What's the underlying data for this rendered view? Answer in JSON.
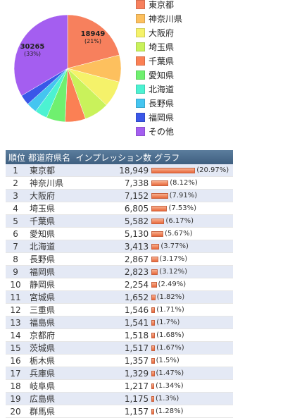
{
  "chart_data": [
    {
      "type": "pie",
      "slices": [
        {
          "label": "東京都",
          "value": 18949,
          "percent": 21,
          "color": "#f7805d"
        },
        {
          "label": "神奈川県",
          "value": 7338,
          "color": "#fdc05e"
        },
        {
          "label": "大阪府",
          "value": 7152,
          "color": "#f5f26a"
        },
        {
          "label": "埼玉県",
          "value": 6805,
          "color": "#c9f25b"
        },
        {
          "label": "千葉県",
          "value": 5582,
          "color": "#fb8054"
        },
        {
          "label": "愛知県",
          "value": 5130,
          "color": "#6ff06f"
        },
        {
          "label": "北海道",
          "value": 3413,
          "color": "#4cf2d2"
        },
        {
          "label": "長野県",
          "value": 2867,
          "color": "#45c5f0"
        },
        {
          "label": "福岡県",
          "value": 2823,
          "color": "#3a57e8"
        },
        {
          "label": "その他",
          "value": 30265,
          "percent": 33,
          "color": "#a45ef0"
        }
      ],
      "slice_labels": [
        {
          "value": "18949",
          "percent": "(21%)"
        },
        {
          "value": "30265",
          "percent": "(33%)"
        }
      ]
    },
    {
      "type": "table",
      "headers": [
        "順位",
        "都道府県名",
        "インプレッション数",
        "グラフ"
      ],
      "rows": [
        {
          "rank": "1",
          "pref": "東京都",
          "imp": "18,949",
          "share": 20.97,
          "pct": "(20.97%)"
        },
        {
          "rank": "2",
          "pref": "神奈川県",
          "imp": "7,338",
          "share": 8.12,
          "pct": "(8.12%)"
        },
        {
          "rank": "3",
          "pref": "大阪府",
          "imp": "7,152",
          "share": 7.91,
          "pct": "(7.91%)"
        },
        {
          "rank": "4",
          "pref": "埼玉県",
          "imp": "6,805",
          "share": 7.53,
          "pct": "(7.53%)"
        },
        {
          "rank": "5",
          "pref": "千葉県",
          "imp": "5,582",
          "share": 6.17,
          "pct": "(6.17%)"
        },
        {
          "rank": "6",
          "pref": "愛知県",
          "imp": "5,130",
          "share": 5.67,
          "pct": "(5.67%)"
        },
        {
          "rank": "7",
          "pref": "北海道",
          "imp": "3,413",
          "share": 3.77,
          "pct": "(3.77%)"
        },
        {
          "rank": "8",
          "pref": "長野県",
          "imp": "2,867",
          "share": 3.17,
          "pct": "(3.17%)"
        },
        {
          "rank": "9",
          "pref": "福岡県",
          "imp": "2,823",
          "share": 3.12,
          "pct": "(3.12%)"
        },
        {
          "rank": "10",
          "pref": "静岡県",
          "imp": "2,254",
          "share": 2.49,
          "pct": "(2.49%)"
        },
        {
          "rank": "11",
          "pref": "宮城県",
          "imp": "1,652",
          "share": 1.82,
          "pct": "(1.82%)"
        },
        {
          "rank": "12",
          "pref": "三重県",
          "imp": "1,546",
          "share": 1.71,
          "pct": "(1.71%)"
        },
        {
          "rank": "13",
          "pref": "福島県",
          "imp": "1,541",
          "share": 1.7,
          "pct": "(1.7%)"
        },
        {
          "rank": "14",
          "pref": "京都府",
          "imp": "1,518",
          "share": 1.68,
          "pct": "(1.68%)"
        },
        {
          "rank": "15",
          "pref": "茨城県",
          "imp": "1,517",
          "share": 1.67,
          "pct": "(1.67%)"
        },
        {
          "rank": "16",
          "pref": "栃木県",
          "imp": "1,357",
          "share": 1.5,
          "pct": "(1.5%)"
        },
        {
          "rank": "17",
          "pref": "兵庫県",
          "imp": "1,329",
          "share": 1.47,
          "pct": "(1.47%)"
        },
        {
          "rank": "18",
          "pref": "岐阜県",
          "imp": "1,217",
          "share": 1.34,
          "pct": "(1.34%)"
        },
        {
          "rank": "19",
          "pref": "広島県",
          "imp": "1,175",
          "share": 1.3,
          "pct": "(1.3%)"
        },
        {
          "rank": "20",
          "pref": "群馬県",
          "imp": "1,157",
          "share": 1.28,
          "pct": "(1.28%)"
        }
      ]
    }
  ]
}
